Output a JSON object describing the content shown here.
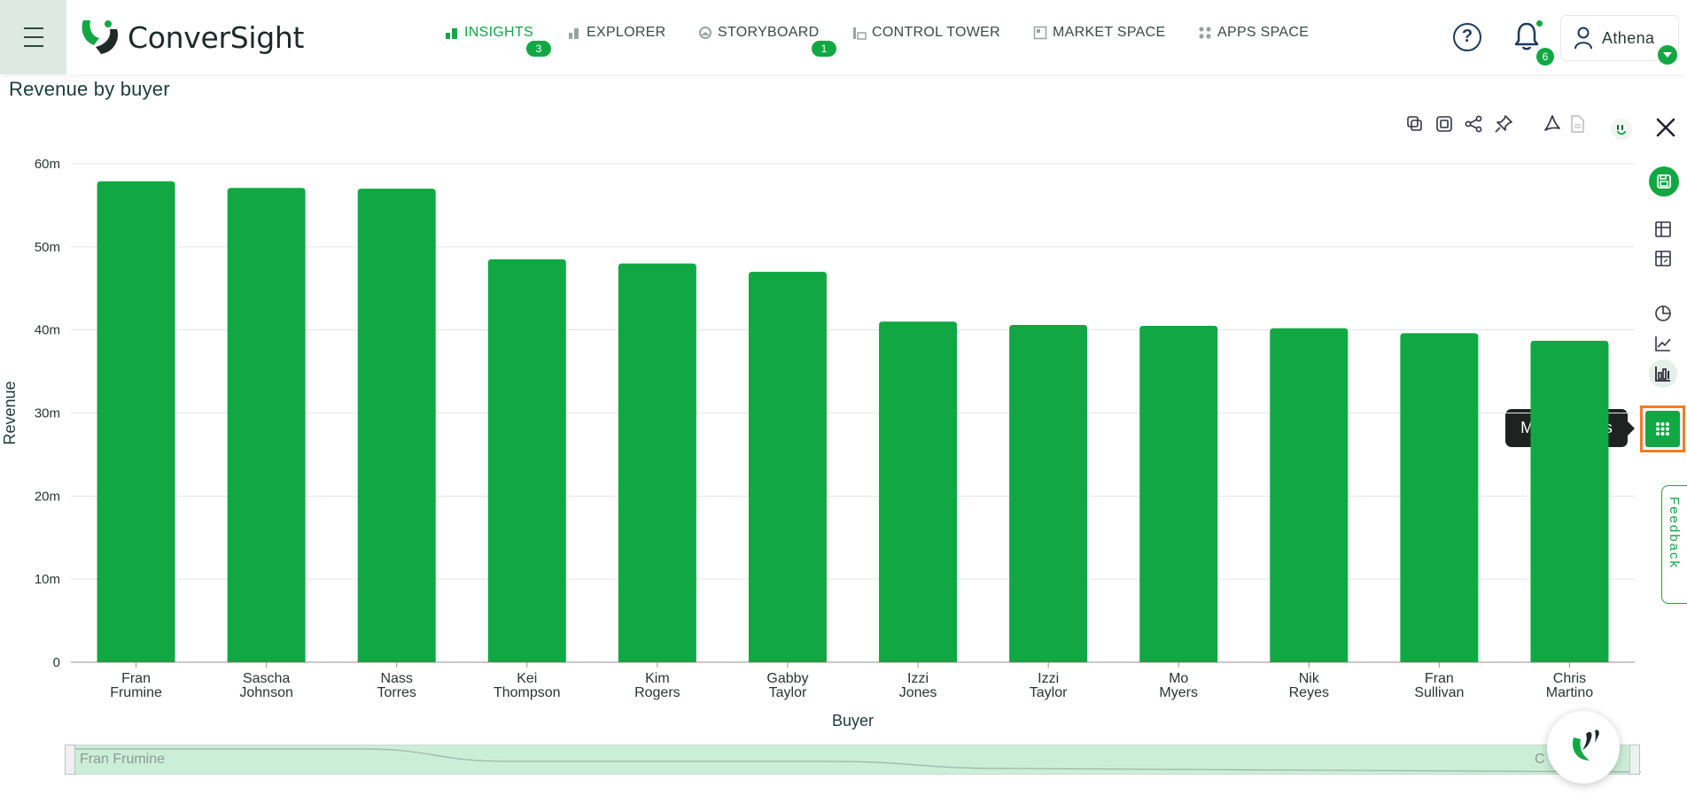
{
  "app": {
    "brand": "ConverSight"
  },
  "nav": [
    {
      "label": "INSIGHTS",
      "badge": "3",
      "active": true
    },
    {
      "label": "EXPLORER",
      "badge": "",
      "active": false
    },
    {
      "label": "STORYBOARD",
      "badge": "1",
      "active": false
    },
    {
      "label": "CONTROL TOWER",
      "badge": "",
      "active": false
    },
    {
      "label": "MARKET SPACE",
      "badge": "",
      "active": false
    },
    {
      "label": "APPS SPACE",
      "badge": "",
      "active": false
    }
  ],
  "header": {
    "help_label": "?",
    "notifications_count": "6",
    "user_name": "Athena"
  },
  "page": {
    "title": "Revenue by buyer"
  },
  "toolbar_icons": [
    "copy-icon",
    "copy-image-icon",
    "share-icon",
    "pin-icon",
    "pdf-icon",
    "document-icon",
    "face-icon"
  ],
  "right_rail": {
    "icons": [
      "save-icon",
      "table-icon",
      "pivot-table-icon",
      "pie-chart-icon",
      "line-chart-icon",
      "bar-chart-icon",
      "grid-icon"
    ],
    "tooltip": "More Visuals",
    "feedback_label": "Feedback"
  },
  "scroller": {
    "left_label": "Fran Frumine",
    "right_label": "C     o"
  },
  "colors": {
    "accent": "#11a843",
    "highlight": "#f47c20",
    "tooltip_bg": "#1e2221"
  },
  "chart_data": {
    "type": "bar",
    "xlabel": "Buyer",
    "ylabel": "Revenue",
    "ylim": [
      0,
      60
    ],
    "yticks": [
      "0",
      "10m",
      "20m",
      "30m",
      "40m",
      "50m",
      "60m"
    ],
    "grid": true,
    "categories": [
      [
        "Fran",
        "Frumine"
      ],
      [
        "Sascha",
        "Johnson"
      ],
      [
        "Nass",
        "Torres"
      ],
      [
        "Kei",
        "Thompson"
      ],
      [
        "Kim",
        "Rogers"
      ],
      [
        "Gabby",
        "Taylor"
      ],
      [
        "Izzi",
        "Jones"
      ],
      [
        "Izzi",
        "Taylor"
      ],
      [
        "Mo",
        "Myers"
      ],
      [
        "Nik",
        "Reyes"
      ],
      [
        "Fran",
        "Sullivan"
      ],
      [
        "Chris",
        "Martino"
      ]
    ],
    "values": [
      57.9,
      57.1,
      57.0,
      48.5,
      48.0,
      47.0,
      41.0,
      40.6,
      40.5,
      40.2,
      39.6,
      38.7
    ],
    "unit": "m",
    "bar_color": "#11a843"
  }
}
